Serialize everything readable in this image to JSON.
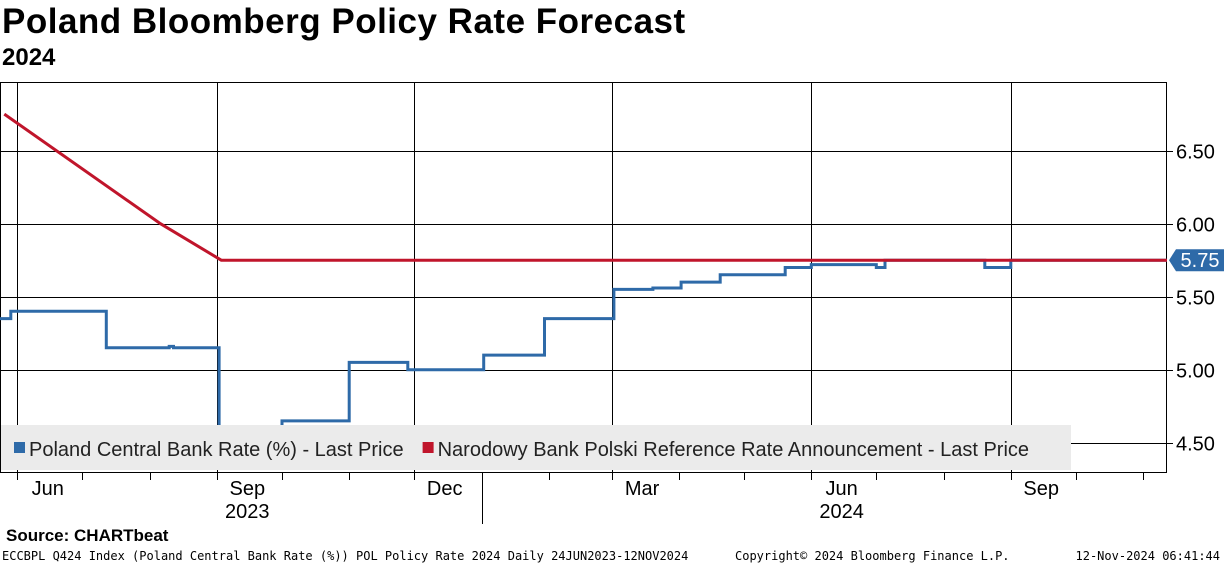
{
  "header": {
    "title": "Poland Bloomberg Policy Rate Forecast",
    "subtitle": "2024"
  },
  "footer": {
    "source": "Source: CHARTbeat",
    "info": "ECCBPL Q424 Index (Poland Central Bank Rate (%)) POL Policy Rate 2024  Daily 24JUN2023-12NOV2024",
    "copyright": "Copyright© 2024 Bloomberg Finance L.P.",
    "timestamp": "12-Nov-2024 06:41:44"
  },
  "chart_data": {
    "type": "line",
    "x_range": [
      "2023-05-24",
      "2024-11-12"
    ],
    "ylim": [
      4.3,
      6.97
    ],
    "y_ticks": [
      "4.50",
      "5.00",
      "5.50",
      "6.00",
      "6.50"
    ],
    "x_month_labels": [
      {
        "label": "Jun",
        "date": "2023-06-01"
      },
      {
        "label": "Sep",
        "date": "2023-09-01"
      },
      {
        "label": "Dec",
        "date": "2023-12-01"
      },
      {
        "label": "Mar",
        "date": "2024-03-01"
      },
      {
        "label": "Jun",
        "date": "2024-06-01"
      },
      {
        "label": "Sep",
        "date": "2024-09-01"
      }
    ],
    "x_year_labels": [
      {
        "label": "2023",
        "date": "2023-09-01"
      },
      {
        "label": "2024",
        "date": "2024-06-01"
      }
    ],
    "gridlines": true,
    "legend_position": "bottom-left",
    "series": [
      {
        "name": "Poland Central Bank Rate (%) - Last Price",
        "color": "#2e6aa8",
        "step": true,
        "points": [
          [
            "2023-05-24",
            5.35
          ],
          [
            "2023-05-29",
            5.4
          ],
          [
            "2023-07-12",
            5.15
          ],
          [
            "2023-08-10",
            5.16
          ],
          [
            "2023-08-12",
            5.15
          ],
          [
            "2023-09-01",
            5.15
          ],
          [
            "2023-09-02",
            4.6
          ],
          [
            "2023-10-01",
            4.65
          ],
          [
            "2023-11-01",
            5.05
          ],
          [
            "2023-11-28",
            5.0
          ],
          [
            "2024-01-02",
            5.1
          ],
          [
            "2024-01-30",
            5.35
          ],
          [
            "2024-03-02",
            5.55
          ],
          [
            "2024-03-20",
            5.56
          ],
          [
            "2024-04-02",
            5.6
          ],
          [
            "2024-04-20",
            5.65
          ],
          [
            "2024-05-20",
            5.7
          ],
          [
            "2024-06-01",
            5.72
          ],
          [
            "2024-07-01",
            5.7
          ],
          [
            "2024-07-05",
            5.75
          ],
          [
            "2024-08-20",
            5.7
          ],
          [
            "2024-09-01",
            5.75
          ],
          [
            "2024-11-12",
            5.75
          ]
        ]
      },
      {
        "name": "Narodowy Bank Polski Reference Rate Announcement - Last Price",
        "color": "#c0152b",
        "step": false,
        "points": [
          [
            "2023-05-26",
            6.75
          ],
          [
            "2023-08-06",
            6.0
          ],
          [
            "2023-09-03",
            5.75
          ],
          [
            "2024-11-12",
            5.75
          ]
        ]
      }
    ],
    "last_value_label": "5.75"
  }
}
